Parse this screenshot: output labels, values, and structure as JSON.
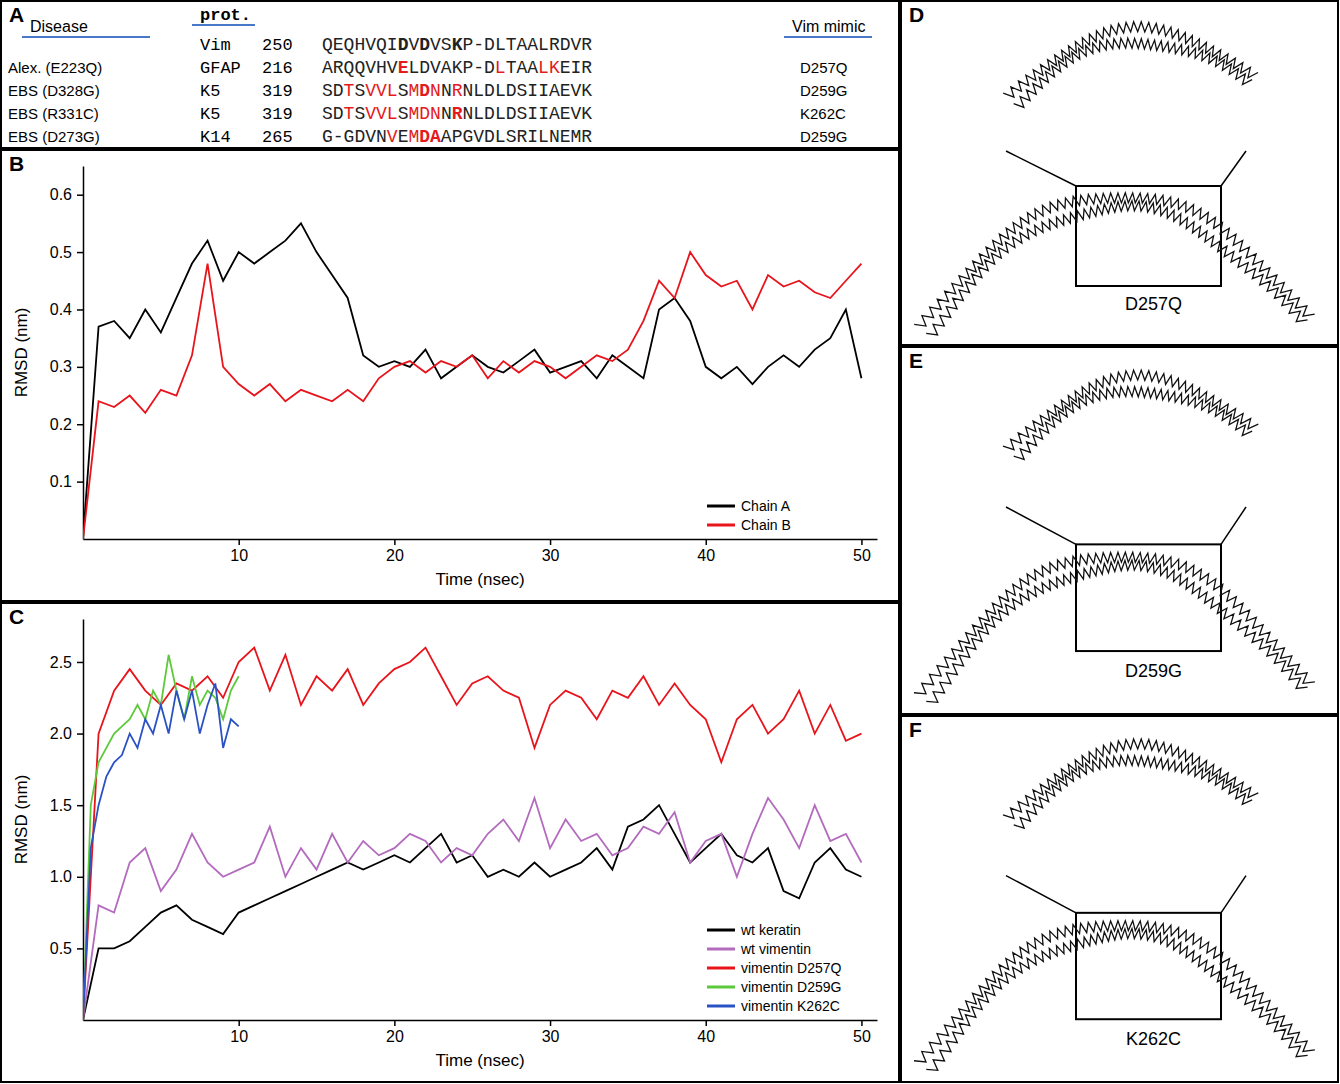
{
  "panel_labels": [
    "A",
    "B",
    "C",
    "D",
    "E",
    "F"
  ],
  "table": {
    "header": [
      "Disease",
      "prot.",
      "Vim mimic"
    ],
    "rows": [
      {
        "protein": "Vim",
        "start": 250,
        "segments": [
          {
            "text": "QEQHVQI"
          },
          {
            "text": "D",
            "bold": true
          },
          {
            "text": "V"
          },
          {
            "text": "D",
            "bold": true
          },
          {
            "text": "VS"
          },
          {
            "text": "K",
            "bold": true
          },
          {
            "text": "P-DLTAALRDVR"
          }
        ]
      },
      {
        "disease": "Alex. (E223Q)",
        "protein": "GFAP",
        "start": 216,
        "mimic": "D257Q",
        "segments": [
          {
            "text": "ARQQVHV"
          },
          {
            "text": "E",
            "color": "#e41a1c",
            "bold": true
          },
          {
            "text": "LDVAKP-D"
          },
          {
            "text": "L",
            "color": "#e41a1c"
          },
          {
            "text": "TAA"
          },
          {
            "text": "LK",
            "color": "#e41a1c"
          },
          {
            "text": "EIR"
          }
        ]
      },
      {
        "disease": "EBS (D328G)",
        "protein": "K5",
        "start": 319,
        "mimic": "D259G",
        "segments": [
          {
            "text": "SD"
          },
          {
            "text": "T",
            "color": "#e41a1c"
          },
          {
            "text": "S"
          },
          {
            "text": "VVL",
            "color": "#e41a1c"
          },
          {
            "text": "S"
          },
          {
            "text": "M",
            "color": "#e41a1c"
          },
          {
            "text": "D",
            "color": "#e41a1c",
            "bold": true
          },
          {
            "text": "N",
            "color": "#e41a1c"
          },
          {
            "text": "N"
          },
          {
            "text": "R",
            "color": "#e41a1c"
          },
          {
            "text": "NLDLDSIIAEVK"
          }
        ]
      },
      {
        "disease": "EBS (R331C)",
        "protein": "K5",
        "start": 319,
        "mimic": "K262C",
        "segments": [
          {
            "text": "SD"
          },
          {
            "text": "T",
            "color": "#e41a1c"
          },
          {
            "text": "S"
          },
          {
            "text": "VVL",
            "color": "#e41a1c"
          },
          {
            "text": "S"
          },
          {
            "text": "M",
            "color": "#e41a1c"
          },
          {
            "text": "D",
            "color": "#e41a1c"
          },
          {
            "text": "N",
            "color": "#e41a1c"
          },
          {
            "text": "N"
          },
          {
            "text": "R",
            "color": "#e41a1c",
            "bold": true
          },
          {
            "text": "NLDLDSIIAEVK"
          }
        ]
      },
      {
        "disease": "EBS (D273G)",
        "protein": "K14",
        "start": 265,
        "mimic": "D259G",
        "segments": [
          {
            "text": "G-GDVN"
          },
          {
            "text": "V",
            "color": "#e41a1c"
          },
          {
            "text": "E"
          },
          {
            "text": "M",
            "color": "#e41a1c"
          },
          {
            "text": "DA",
            "color": "#e41a1c",
            "bold": true
          },
          {
            "text": "APGVDLSRILNEMR"
          }
        ]
      }
    ]
  },
  "chart_data": [
    {
      "type": "line",
      "x_label": "Time (nsec)",
      "y_label": "RMSD (nm)",
      "xlim": [
        0,
        51
      ],
      "xticks": [
        10,
        20,
        30,
        40,
        50
      ],
      "ylim": [
        0,
        0.65
      ],
      "yticks": [
        0.1,
        0.2,
        0.3,
        0.4,
        0.5,
        0.6
      ],
      "legend": "lower-right",
      "grid": false,
      "x": [
        0,
        1,
        2,
        3,
        4,
        5,
        6,
        7,
        8,
        9,
        10,
        11,
        12,
        13,
        14,
        15,
        16,
        17,
        18,
        19,
        20,
        21,
        22,
        23,
        24,
        25,
        26,
        27,
        28,
        29,
        30,
        31,
        32,
        33,
        34,
        35,
        36,
        37,
        38,
        39,
        40,
        41,
        42,
        43,
        44,
        45,
        46,
        47,
        48,
        49,
        50
      ],
      "series": [
        {
          "name": "Chain A",
          "color": "#000000",
          "values": [
            0,
            0.37,
            0.38,
            0.35,
            0.4,
            0.36,
            0.42,
            0.48,
            0.52,
            0.45,
            0.5,
            0.48,
            0.5,
            0.52,
            0.55,
            0.5,
            0.46,
            0.42,
            0.32,
            0.3,
            0.31,
            0.3,
            0.33,
            0.28,
            0.3,
            0.32,
            0.3,
            0.29,
            0.31,
            0.33,
            0.29,
            0.3,
            0.31,
            0.28,
            0.32,
            0.3,
            0.28,
            0.4,
            0.42,
            0.38,
            0.3,
            0.28,
            0.3,
            0.27,
            0.3,
            0.32,
            0.3,
            0.33,
            0.35,
            0.4,
            0.28
          ]
        },
        {
          "name": "Chain B",
          "color": "#e8141c",
          "values": [
            0,
            0.24,
            0.23,
            0.25,
            0.22,
            0.26,
            0.25,
            0.32,
            0.48,
            0.3,
            0.27,
            0.25,
            0.27,
            0.24,
            0.26,
            0.25,
            0.24,
            0.26,
            0.24,
            0.28,
            0.3,
            0.31,
            0.29,
            0.31,
            0.3,
            0.32,
            0.28,
            0.31,
            0.29,
            0.31,
            0.3,
            0.28,
            0.3,
            0.32,
            0.31,
            0.33,
            0.38,
            0.45,
            0.42,
            0.5,
            0.46,
            0.44,
            0.45,
            0.4,
            0.46,
            0.44,
            0.45,
            0.43,
            0.42,
            0.45,
            0.48
          ]
        }
      ]
    },
    {
      "type": "line",
      "x_label": "Time (nsec)",
      "y_label": "RMSD (nm)",
      "xlim": [
        0,
        51
      ],
      "xticks": [
        10,
        20,
        30,
        40,
        50
      ],
      "ylim": [
        0,
        2.8
      ],
      "yticks": [
        0.5,
        {
          "value": 1,
          "label": "1.0"
        },
        1.5,
        {
          "value": 2,
          "label": "2.0"
        },
        2.5
      ],
      "legend": "lower-right",
      "grid": false,
      "x": [
        0,
        1,
        2,
        3,
        4,
        5,
        6,
        7,
        8,
        9,
        10,
        11,
        12,
        13,
        14,
        15,
        16,
        17,
        18,
        19,
        20,
        21,
        22,
        23,
        24,
        25,
        26,
        27,
        28,
        29,
        30,
        31,
        32,
        33,
        34,
        35,
        36,
        37,
        38,
        39,
        40,
        41,
        42,
        43,
        44,
        45,
        46,
        47,
        48,
        49,
        50
      ],
      "series": [
        {
          "name": "wt keratin",
          "color": "#000000",
          "values": [
            0,
            0.5,
            0.5,
            0.55,
            0.65,
            0.75,
            0.8,
            0.7,
            0.65,
            0.6,
            0.75,
            0.8,
            0.85,
            0.9,
            0.95,
            1.0,
            1.05,
            1.1,
            1.05,
            1.1,
            1.15,
            1.1,
            1.2,
            1.3,
            1.1,
            1.15,
            1.0,
            1.05,
            1.0,
            1.1,
            1.0,
            1.05,
            1.1,
            1.2,
            1.05,
            1.35,
            1.4,
            1.5,
            1.3,
            1.1,
            1.2,
            1.3,
            1.15,
            1.1,
            1.2,
            0.9,
            0.85,
            1.1,
            1.2,
            1.05,
            1.0
          ]
        },
        {
          "name": "wt vimentin",
          "color": "#b36bbd",
          "values": [
            0,
            0.8,
            0.75,
            1.1,
            1.2,
            0.9,
            1.05,
            1.3,
            1.1,
            1.0,
            1.05,
            1.1,
            1.35,
            1.0,
            1.2,
            1.05,
            1.3,
            1.1,
            1.25,
            1.15,
            1.2,
            1.3,
            1.25,
            1.1,
            1.2,
            1.15,
            1.3,
            1.4,
            1.25,
            1.55,
            1.2,
            1.4,
            1.25,
            1.3,
            1.15,
            1.2,
            1.35,
            1.3,
            1.45,
            1.1,
            1.25,
            1.3,
            1.0,
            1.3,
            1.55,
            1.4,
            1.2,
            1.5,
            1.25,
            1.3,
            1.1
          ]
        },
        {
          "name": "vimentin D257Q",
          "color": "#e8141c",
          "values": [
            0,
            2.0,
            2.3,
            2.45,
            2.3,
            2.2,
            2.35,
            2.3,
            2.4,
            2.25,
            2.5,
            2.6,
            2.3,
            2.55,
            2.2,
            2.4,
            2.3,
            2.45,
            2.2,
            2.35,
            2.45,
            2.5,
            2.6,
            2.4,
            2.2,
            2.35,
            2.4,
            2.3,
            2.25,
            1.9,
            2.2,
            2.3,
            2.25,
            2.1,
            2.3,
            2.25,
            2.4,
            2.2,
            2.35,
            2.2,
            2.1,
            1.8,
            2.1,
            2.2,
            2.0,
            2.1,
            2.3,
            2.0,
            2.2,
            1.95,
            2.0
          ]
        },
        {
          "name": "vimentin D259G",
          "color": "#5cc93a",
          "x": [
            0,
            0.5,
            1,
            1.5,
            2,
            2.5,
            3,
            3.5,
            4,
            4.5,
            5,
            5.5,
            6,
            6.5,
            7,
            7.5,
            8,
            8.5,
            9,
            9.5,
            10
          ],
          "values": [
            0,
            1.5,
            1.8,
            1.9,
            2.0,
            2.05,
            2.1,
            2.2,
            2.1,
            2.3,
            2.2,
            2.55,
            2.3,
            2.1,
            2.4,
            2.2,
            2.3,
            2.25,
            2.1,
            2.3,
            2.4
          ]
        },
        {
          "name": "vimentin K262C",
          "color": "#2b52c4",
          "x": [
            0,
            0.5,
            1,
            1.5,
            2,
            2.5,
            3,
            3.5,
            4,
            4.5,
            5,
            5.5,
            6,
            6.5,
            7,
            7.5,
            8,
            8.5,
            9,
            9.5,
            10
          ],
          "values": [
            0,
            1.2,
            1.5,
            1.7,
            1.8,
            1.85,
            2.0,
            1.9,
            2.1,
            2.0,
            2.2,
            2.0,
            2.3,
            2.1,
            2.3,
            2.0,
            2.2,
            2.35,
            1.9,
            2.1,
            2.05
          ]
        }
      ]
    }
  ],
  "structures": [
    "D257Q",
    "D259G",
    "K262C"
  ]
}
